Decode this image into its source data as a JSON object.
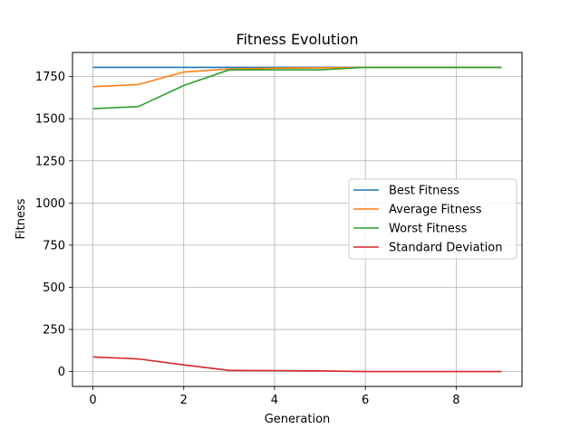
{
  "chart_data": {
    "type": "line",
    "title": "Fitness Evolution",
    "xlabel": "Generation",
    "ylabel": "Fitness",
    "xlim": [
      -0.45,
      9.45
    ],
    "ylim": [
      -88,
      1893
    ],
    "xticks": [
      0,
      2,
      4,
      6,
      8
    ],
    "xtick_labels": [
      "0",
      "2",
      "4",
      "6",
      "8"
    ],
    "yticks": [
      0,
      250,
      500,
      750,
      1000,
      1250,
      1500,
      1750
    ],
    "ytick_labels": [
      "0",
      "250",
      "500",
      "750",
      "1000",
      "1250",
      "1500",
      "1750"
    ],
    "grid": true,
    "legend_position": "center-right",
    "x": [
      0,
      1,
      2,
      3,
      4,
      5,
      6,
      7,
      8,
      9
    ],
    "series": [
      {
        "name": "Best Fitness",
        "color": "#1f77b4",
        "values": [
          1805,
          1805,
          1805,
          1805,
          1805,
          1805,
          1805,
          1805,
          1805,
          1805
        ]
      },
      {
        "name": "Average Fitness",
        "color": "#ff7f0e",
        "values": [
          1690,
          1703,
          1777,
          1795,
          1800,
          1802,
          1805,
          1805,
          1805,
          1805
        ]
      },
      {
        "name": "Worst Fitness",
        "color": "#2ca02c",
        "values": [
          1560,
          1572,
          1697,
          1790,
          1790,
          1790,
          1805,
          1805,
          1805,
          1805
        ]
      },
      {
        "name": "Standard Deviation",
        "color": "#d62728",
        "values": [
          87,
          75,
          40,
          7,
          6,
          4,
          0,
          0,
          0,
          0
        ]
      }
    ]
  }
}
